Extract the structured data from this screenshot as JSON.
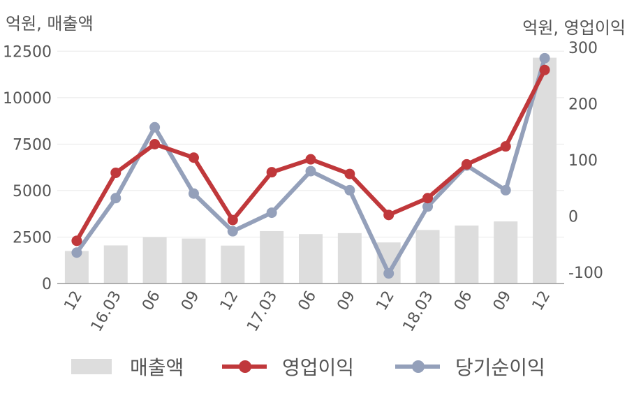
{
  "chart_data": {
    "type": "bar",
    "left_axis_title": "억원, 매출액",
    "right_axis_title": "억원, 영업이익",
    "categories": [
      "12",
      "16.03",
      "06",
      "09",
      "12",
      "17.03",
      "06",
      "09",
      "12",
      "18.03",
      "06",
      "09",
      "12"
    ],
    "left_ticks": [
      "0",
      "2500",
      "5000",
      "7500",
      "10000",
      "12500"
    ],
    "right_ticks": [
      "-100",
      "0",
      "100",
      "200",
      "300"
    ],
    "left_ylim": [
      0,
      13000
    ],
    "right_ylim": [
      -120,
      310
    ],
    "grid": true,
    "legend_position": "bottom",
    "series": [
      {
        "name": "매출액",
        "type": "bar",
        "axis": "left",
        "color": "#dddddd",
        "values": [
          1750,
          2050,
          2480,
          2420,
          2040,
          2820,
          2660,
          2710,
          2210,
          2880,
          3120,
          3340,
          12150
        ]
      },
      {
        "name": "영업이익",
        "type": "line",
        "axis": "right",
        "color": "#c0383b",
        "values": [
          -44,
          77,
          128,
          104,
          -7,
          78,
          101,
          75,
          2,
          32,
          92,
          124,
          260
        ]
      },
      {
        "name": "당기순이익",
        "type": "line",
        "axis": "right",
        "color": "#94a0ba",
        "values": [
          -65,
          32,
          158,
          40,
          -27,
          6,
          80,
          46,
          -102,
          17,
          90,
          46,
          281
        ]
      }
    ]
  }
}
